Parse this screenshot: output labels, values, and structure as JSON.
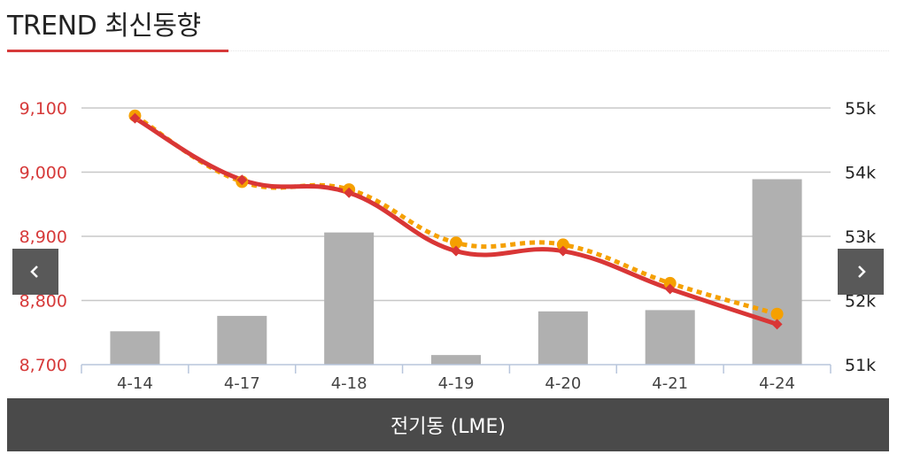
{
  "header": {
    "title": "TREND 최신동향"
  },
  "footer": {
    "label": "전기동 (LME)"
  },
  "chart_data": {
    "type": "line",
    "categories": [
      "4-14",
      "4-17",
      "4-18",
      "4-19",
      "4-20",
      "4-21",
      "4-24"
    ],
    "y_left": {
      "ticks": [
        "9,100",
        "9,000",
        "8,900",
        "8,800",
        "8,700"
      ],
      "range": [
        8700,
        9100
      ]
    },
    "y_right": {
      "ticks": [
        "55k",
        "54k",
        "53k",
        "52k",
        "51k"
      ],
      "range": [
        51000,
        55000
      ]
    },
    "grid": true,
    "series": [
      {
        "kind": "bar",
        "axis": "right",
        "color": "#b0b0b0",
        "values": [
          51520,
          51760,
          53060,
          51150,
          51830,
          51850,
          53890
        ]
      },
      {
        "kind": "line",
        "axis": "left",
        "color": "#f5a000",
        "dashed": true,
        "marker": "circle",
        "values": [
          9088,
          8985,
          8973,
          8890,
          8887,
          8827,
          8779
        ]
      },
      {
        "kind": "line",
        "axis": "left",
        "color": "#d93636",
        "dashed": false,
        "marker": "diamond",
        "values": [
          9084,
          8988,
          8968,
          8877,
          8877,
          8818,
          8763
        ]
      }
    ]
  }
}
